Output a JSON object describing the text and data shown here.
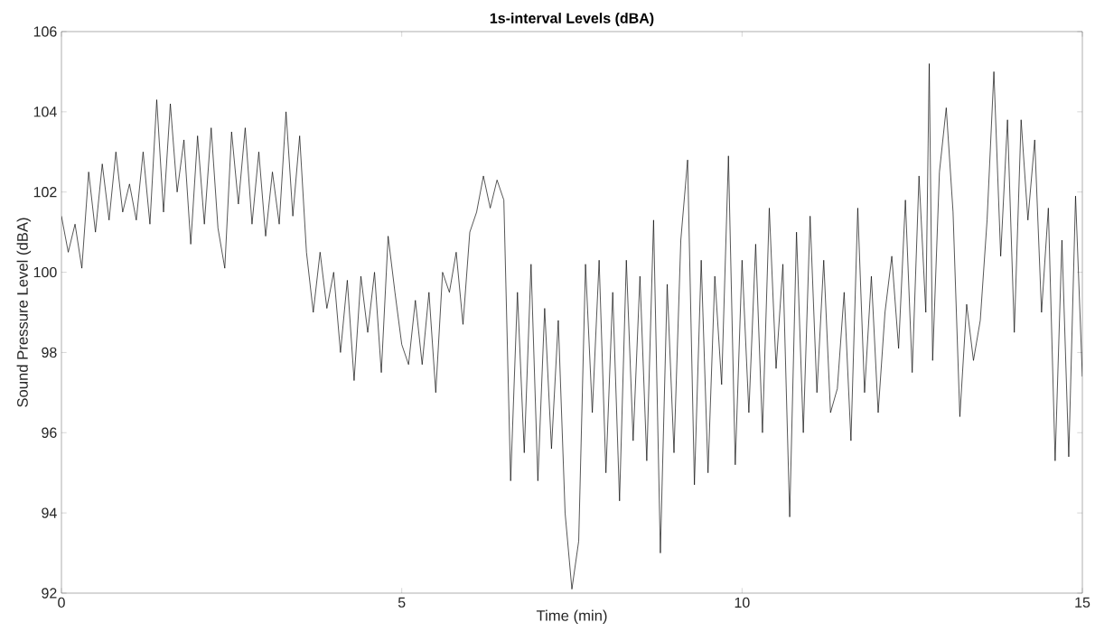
{
  "chart_data": {
    "type": "line",
    "title": "1s-interval Levels (dBA)",
    "xlabel": "Time (min)",
    "ylabel": "Sound Pressure Level (dBA)",
    "color": "#000000",
    "x": [
      0.0,
      0.1,
      0.2,
      0.3,
      0.4,
      0.5,
      0.6,
      0.7,
      0.8,
      0.9,
      1.0,
      1.1,
      1.2,
      1.3,
      1.4,
      1.5,
      1.6,
      1.7,
      1.8,
      1.9,
      2.0,
      2.1,
      2.2,
      2.3,
      2.4,
      2.5,
      2.6,
      2.7,
      2.8,
      2.9,
      3.0,
      3.1,
      3.2,
      3.3,
      3.4,
      3.5,
      3.6,
      3.7,
      3.8,
      3.9,
      4.0,
      4.1,
      4.2,
      4.3,
      4.4,
      4.5,
      4.6,
      4.7,
      4.8,
      4.9,
      5.0,
      5.1,
      5.2,
      5.3,
      5.4,
      5.5,
      5.6,
      5.7,
      5.8,
      5.9,
      6.0,
      6.1,
      6.2,
      6.3,
      6.4,
      6.5,
      6.6,
      6.7,
      6.8,
      6.9,
      7.0,
      7.1,
      7.2,
      7.3,
      7.4,
      7.5,
      7.6,
      7.7,
      7.8,
      7.9,
      8.0,
      8.1,
      8.2,
      8.3,
      8.4,
      8.5,
      8.6,
      8.7,
      8.8,
      8.9,
      9.0,
      9.1,
      9.2,
      9.3,
      9.4,
      9.5,
      9.6,
      9.7,
      9.8,
      9.9,
      10.0,
      10.1,
      10.2,
      10.3,
      10.4,
      10.5,
      10.6,
      10.7,
      10.8,
      10.9,
      11.0,
      11.1,
      11.2,
      11.3,
      11.4,
      11.5,
      11.6,
      11.7,
      11.8,
      11.9,
      12.0,
      12.1,
      12.2,
      12.3,
      12.4,
      12.5,
      12.6,
      12.7,
      12.75,
      12.8,
      12.9,
      13.0,
      13.1,
      13.2,
      13.3,
      13.4,
      13.5,
      13.6,
      13.7,
      13.8,
      13.9,
      14.0,
      14.1,
      14.2,
      14.3,
      14.4,
      14.5,
      14.6,
      14.7,
      14.8,
      14.9,
      15.0
    ],
    "values": [
      101.4,
      100.5,
      101.2,
      100.1,
      102.5,
      101.0,
      102.7,
      101.3,
      103.0,
      101.5,
      102.2,
      101.3,
      103.0,
      101.2,
      104.3,
      101.5,
      104.2,
      102.0,
      103.3,
      100.7,
      103.4,
      101.2,
      103.6,
      101.1,
      100.1,
      103.5,
      101.7,
      103.6,
      101.2,
      103.0,
      100.9,
      102.5,
      101.2,
      104.0,
      101.4,
      103.4,
      100.5,
      99.0,
      100.5,
      99.1,
      100.0,
      98.0,
      99.8,
      97.3,
      99.9,
      98.5,
      100.0,
      97.5,
      100.9,
      99.5,
      98.2,
      97.7,
      99.3,
      97.7,
      99.5,
      97.0,
      100.0,
      99.5,
      100.5,
      98.7,
      101.0,
      101.5,
      102.4,
      101.6,
      102.3,
      101.8,
      94.8,
      99.5,
      95.5,
      100.2,
      94.8,
      99.1,
      95.6,
      98.8,
      94.0,
      92.1,
      93.3,
      100.2,
      96.5,
      100.3,
      95.0,
      99.5,
      94.3,
      100.3,
      95.8,
      99.9,
      95.3,
      101.3,
      93.0,
      99.7,
      95.5,
      100.8,
      102.8,
      94.7,
      100.3,
      95.0,
      99.9,
      97.2,
      102.9,
      95.2,
      100.3,
      96.5,
      100.7,
      96.0,
      101.6,
      97.6,
      100.2,
      93.9,
      101.0,
      96.0,
      101.4,
      97.0,
      100.3,
      96.5,
      97.1,
      99.5,
      95.8,
      101.6,
      97.0,
      99.9,
      96.5,
      99.0,
      100.4,
      98.1,
      101.8,
      97.5,
      102.4,
      99.0,
      105.2,
      97.8,
      102.5,
      104.1,
      101.5,
      96.4,
      99.2,
      97.8,
      98.8,
      101.3,
      105.0,
      100.4,
      103.8,
      98.5,
      103.8,
      101.3,
      103.3,
      99.0,
      101.6,
      95.3,
      100.8,
      95.4,
      101.9,
      97.4
    ],
    "xlim": [
      0,
      15
    ],
    "ylim": [
      92,
      106
    ],
    "xticks": [
      0,
      5,
      10,
      15
    ],
    "yticks": [
      92,
      94,
      96,
      98,
      100,
      102,
      104,
      106
    ]
  }
}
